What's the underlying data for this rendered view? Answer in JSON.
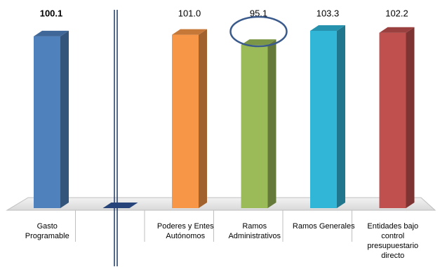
{
  "chart_data": {
    "type": "bar3d",
    "categories": [
      "Gasto Programable",
      null,
      "Poderes y Entes Autónomos",
      "Ramos Administrativos",
      "Ramos Generales",
      "Entidades bajo control presupuestario directo"
    ],
    "values": [
      100.1,
      0,
      101.0,
      95.1,
      103.3,
      102.2
    ],
    "value_labels": [
      "100.1",
      null,
      "101.0",
      "95.1",
      "103.3",
      "102.2"
    ],
    "colors": [
      "#4f81bd",
      "#2f5597",
      "#f79646",
      "#9bbb59",
      "#31b6d8",
      "#c0504d"
    ],
    "highlight": 3
  }
}
